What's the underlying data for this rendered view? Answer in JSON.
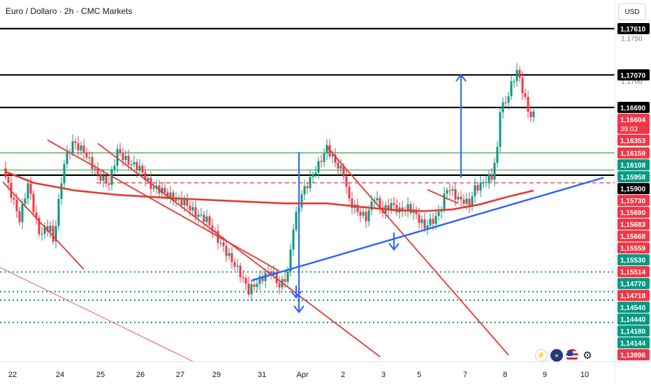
{
  "header": {
    "title": "Euro / Dollaro · 2h · CMC Markets",
    "currency_button": "USD"
  },
  "countdown": "39:03",
  "colors": {
    "up": "#089981",
    "down": "#f23645",
    "black": "#000000",
    "green_level": "#4caf50",
    "blue": "#2962ff",
    "red_line": "#e53935"
  },
  "icons": [
    "bolt-icon",
    "eu-flag-icon",
    "us-flag-icon",
    "settings-gear-icon"
  ],
  "chart_data": {
    "type": "candlestick",
    "symbol": "EURUSD",
    "timeframe": "2h",
    "ylim": [
      1.1375,
      1.1765
    ],
    "x_ticks": [
      "22",
      "24",
      "25",
      "26",
      "27",
      "29",
      "31",
      "Apr",
      "2",
      "3",
      "5",
      "7",
      "8",
      "9",
      "10"
    ],
    "y_ticks": [
      1.175,
      1.17
    ],
    "price_labels": [
      {
        "text": "1,17610",
        "style": "black"
      },
      {
        "text": "1,17070",
        "style": "black"
      },
      {
        "text": "1,16690",
        "style": "black"
      },
      {
        "text": "1,16604",
        "style": "red"
      },
      {
        "text": "1,16353",
        "style": "red"
      },
      {
        "text": "1,16159",
        "style": "red"
      },
      {
        "text": "1,16108",
        "style": "green"
      },
      {
        "text": "1,15958",
        "style": "green"
      },
      {
        "text": "1,15900",
        "style": "black"
      },
      {
        "text": "1,15730",
        "style": "red"
      },
      {
        "text": "1,15690",
        "style": "red"
      },
      {
        "text": "1,15683",
        "style": "red"
      },
      {
        "text": "1,15668",
        "style": "red"
      },
      {
        "text": "1,15559",
        "style": "red"
      },
      {
        "text": "1,15530",
        "style": "green"
      },
      {
        "text": "1,15514",
        "style": "red"
      },
      {
        "text": "1,14770",
        "style": "green"
      },
      {
        "text": "1,14718",
        "style": "red"
      },
      {
        "text": "1,14540",
        "style": "green"
      },
      {
        "text": "1,14440",
        "style": "green"
      },
      {
        "text": "1,14180",
        "style": "green"
      },
      {
        "text": "1,14144",
        "style": "green"
      },
      {
        "text": "1,13896",
        "style": "red"
      }
    ],
    "horizontal_levels": [
      {
        "price": 1.1761,
        "style": "solid-black"
      },
      {
        "price": 1.1707,
        "style": "solid-black"
      },
      {
        "price": 1.1669,
        "style": "solid-black"
      },
      {
        "price": 1.1616,
        "style": "solid-green"
      },
      {
        "price": 1.1596,
        "style": "solid-green"
      },
      {
        "price": 1.159,
        "style": "solid-black"
      },
      {
        "price": 1.1581,
        "style": "dashed-red"
      },
      {
        "price": 1.1477,
        "style": "dotted-green"
      },
      {
        "price": 1.1454,
        "style": "dotted-green"
      },
      {
        "price": 1.1444,
        "style": "dotted-green"
      },
      {
        "price": 1.1418,
        "style": "dotted-green"
      }
    ],
    "pivots": [
      [
        0,
        1.1598
      ],
      [
        6,
        1.1538
      ],
      [
        9,
        1.158
      ],
      [
        13,
        1.1522
      ],
      [
        17,
        1.153
      ],
      [
        18,
        1.151
      ],
      [
        19,
        1.1535
      ],
      [
        22,
        1.1605
      ],
      [
        25,
        1.1628
      ],
      [
        29,
        1.1618
      ],
      [
        34,
        1.159
      ],
      [
        38,
        1.158
      ],
      [
        41,
        1.1618
      ],
      [
        45,
        1.1605
      ],
      [
        49,
        1.1598
      ],
      [
        53,
        1.1577
      ],
      [
        57,
        1.1572
      ],
      [
        61,
        1.1563
      ],
      [
        65,
        1.1558
      ],
      [
        69,
        1.1545
      ],
      [
        73,
        1.1538
      ],
      [
        77,
        1.1515
      ],
      [
        81,
        1.1495
      ],
      [
        85,
        1.1475
      ],
      [
        88,
        1.1455
      ],
      [
        92,
        1.1468
      ],
      [
        96,
        1.1479
      ],
      [
        99,
        1.146
      ],
      [
        102,
        1.1475
      ],
      [
        104,
        1.153
      ],
      [
        107,
        1.1568
      ],
      [
        110,
        1.1585
      ],
      [
        113,
        1.1602
      ],
      [
        116,
        1.1622
      ],
      [
        119,
        1.1605
      ],
      [
        122,
        1.1592
      ],
      [
        124,
        1.156
      ],
      [
        127,
        1.1548
      ],
      [
        130,
        1.154
      ],
      [
        133,
        1.1565
      ],
      [
        136,
        1.1548
      ],
      [
        139,
        1.1556
      ],
      [
        142,
        1.1548
      ],
      [
        145,
        1.1552
      ],
      [
        147,
        1.1548
      ],
      [
        149,
        1.1538
      ],
      [
        151,
        1.153
      ],
      [
        153,
        1.1535
      ],
      [
        155,
        1.154
      ],
      [
        157,
        1.1553
      ],
      [
        159,
        1.1575
      ],
      [
        161,
        1.157
      ],
      [
        163,
        1.1562
      ],
      [
        165,
        1.156
      ],
      [
        167,
        1.1556
      ],
      [
        169,
        1.1575
      ],
      [
        171,
        1.1578
      ],
      [
        173,
        1.1585
      ],
      [
        175,
        1.1588
      ],
      [
        177,
        1.162
      ],
      [
        178,
        1.1668
      ],
      [
        180,
        1.1675
      ],
      [
        182,
        1.1695
      ],
      [
        184,
        1.1712
      ],
      [
        186,
        1.169
      ],
      [
        188,
        1.1665
      ],
      [
        189,
        1.166
      ]
    ],
    "moving_average": [
      [
        0,
        1.1594
      ],
      [
        10,
        1.1581
      ],
      [
        25,
        1.1572
      ],
      [
        40,
        1.1567
      ],
      [
        60,
        1.1563
      ],
      [
        80,
        1.156
      ],
      [
        100,
        1.1557
      ],
      [
        115,
        1.1557
      ],
      [
        130,
        1.1552
      ],
      [
        140,
        1.1549
      ],
      [
        150,
        1.1548
      ],
      [
        160,
        1.155
      ],
      [
        170,
        1.1556
      ],
      [
        180,
        1.1565
      ],
      [
        189,
        1.1572
      ]
    ],
    "trendlines": [
      {
        "from": [
          -1,
          1.1582
        ],
        "to": [
          28,
          1.148
        ],
        "color": "red"
      },
      {
        "from": [
          15,
          1.1631
        ],
        "to": [
          98,
          1.1478
        ],
        "color": "red"
      },
      {
        "from": [
          33,
          1.1627
        ],
        "to": [
          134,
          1.1378
        ],
        "color": "red"
      },
      {
        "from": [
          115,
          1.1623
        ],
        "to": [
          180,
          1.138
        ],
        "color": "red"
      },
      {
        "from": [
          151,
          1.1573
        ],
        "to": [
          162,
          1.1557
        ],
        "color": "red"
      },
      {
        "from": [
          88,
          1.1467
        ],
        "to": [
          214,
          1.1587
        ],
        "color": "blue"
      }
    ],
    "arrows": [
      {
        "x": 105,
        "from": 1.1617,
        "to": 1.143,
        "direction": "down",
        "color": "blue"
      },
      {
        "x": 163,
        "from": 1.1587,
        "to": 1.1707,
        "direction": "up",
        "color": "blue"
      },
      {
        "x": 139,
        "from": 1.1523,
        "to": 1.1503,
        "direction": "down",
        "color": "blue"
      },
      {
        "x": 104,
        "from": 1.1461,
        "to": 1.1447,
        "direction": "down",
        "color": "blue"
      }
    ]
  }
}
